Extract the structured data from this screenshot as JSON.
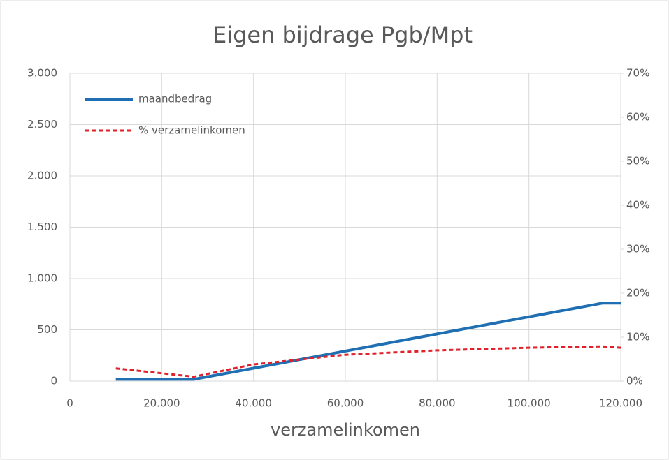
{
  "chart_data": {
    "type": "line",
    "title": "Eigen bijdrage Pgb/Mpt",
    "x_label": "verzamelinkomen",
    "x": [
      10000,
      27000,
      40000,
      60000,
      80000,
      100000,
      116000,
      120000
    ],
    "series": [
      {
        "name": "maandbedrag",
        "color": "#1f6fb2",
        "dash": "solid",
        "values": [
          18,
          18,
          126,
          293,
          460,
          627,
          760,
          760
        ]
      },
      {
        "name": "% verzamelinkomen",
        "color": "#e0202a",
        "dash": "dashed",
        "axis": "y2",
        "values": [
          2.9,
          1.0,
          3.8,
          6.0,
          7.0,
          7.6,
          7.9,
          7.6
        ]
      }
    ],
    "xlim": [
      0,
      120000
    ],
    "xticks": [
      0,
      {
        "value": 20000,
        "label": "20.000"
      },
      {
        "value": 40000,
        "label": "40.000"
      },
      {
        "value": 60000,
        "label": "60.000"
      },
      {
        "value": 80000,
        "label": "80.000"
      },
      {
        "value": 100000,
        "label": "100.000"
      },
      {
        "value": 120000,
        "label": "120.000"
      }
    ],
    "ylim": [
      0,
      3000
    ],
    "yticks": [
      0,
      500,
      {
        "value": 1000,
        "label": "1.000"
      },
      {
        "value": 1500,
        "label": "1.500"
      },
      {
        "value": 2000,
        "label": "2.000"
      },
      {
        "value": 2500,
        "label": "2.500"
      },
      {
        "value": 3000,
        "label": "3.000"
      }
    ],
    "y2lim": [
      0,
      70
    ],
    "y2ticks": [
      {
        "value": 0,
        "label": "0%"
      },
      {
        "value": 10,
        "label": "10%"
      },
      {
        "value": 20,
        "label": "20%"
      },
      {
        "value": 30,
        "label": "30%"
      },
      {
        "value": 40,
        "label": "40%"
      },
      {
        "value": 50,
        "label": "50%"
      },
      {
        "value": 60,
        "label": "60%"
      },
      {
        "value": 70,
        "label": "70%"
      }
    ],
    "grid": true,
    "legend": "top-left"
  }
}
